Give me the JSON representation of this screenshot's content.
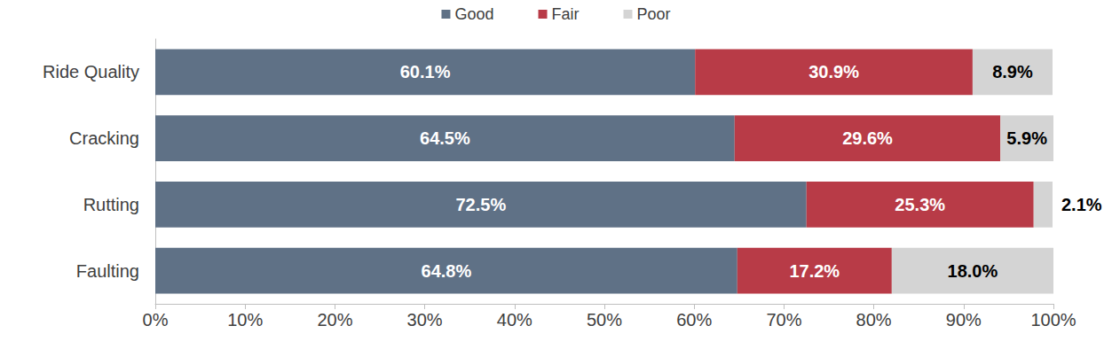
{
  "chart_data": {
    "type": "bar",
    "orientation": "horizontal",
    "stacked": true,
    "data_labels": true,
    "grid": false,
    "legend": "top",
    "categories": [
      "Ride Quality",
      "Cracking",
      "Rutting",
      "Faulting"
    ],
    "series": [
      {
        "name": "Good",
        "color": "#5f7186",
        "values": [
          60.1,
          64.5,
          72.5,
          64.8
        ],
        "value_labels": [
          "60.1%",
          "64.5%",
          "72.5%",
          "64.8%"
        ]
      },
      {
        "name": "Fair",
        "color": "#b83b47",
        "values": [
          30.9,
          29.6,
          25.3,
          17.2
        ],
        "value_labels": [
          "30.9%",
          "29.6%",
          "25.3%",
          "17.2%"
        ]
      },
      {
        "name": "Poor",
        "color": "#d4d4d4",
        "values": [
          8.9,
          5.9,
          2.1,
          18.0
        ],
        "value_labels": [
          "8.9%",
          "5.9%",
          "2.1%",
          "18.0%"
        ]
      }
    ],
    "xlim": [
      0,
      100
    ],
    "xticks": [
      {
        "value": 0,
        "label": "0%"
      },
      {
        "value": 10,
        "label": "10%"
      },
      {
        "value": 20,
        "label": "20%"
      },
      {
        "value": 30,
        "label": "30%"
      },
      {
        "value": 40,
        "label": "40%"
      },
      {
        "value": 50,
        "label": "50%"
      },
      {
        "value": 60,
        "label": "60%"
      },
      {
        "value": 70,
        "label": "70%"
      },
      {
        "value": 80,
        "label": "80%"
      },
      {
        "value": 90,
        "label": "90%"
      },
      {
        "value": 100,
        "label": "100%"
      }
    ]
  }
}
